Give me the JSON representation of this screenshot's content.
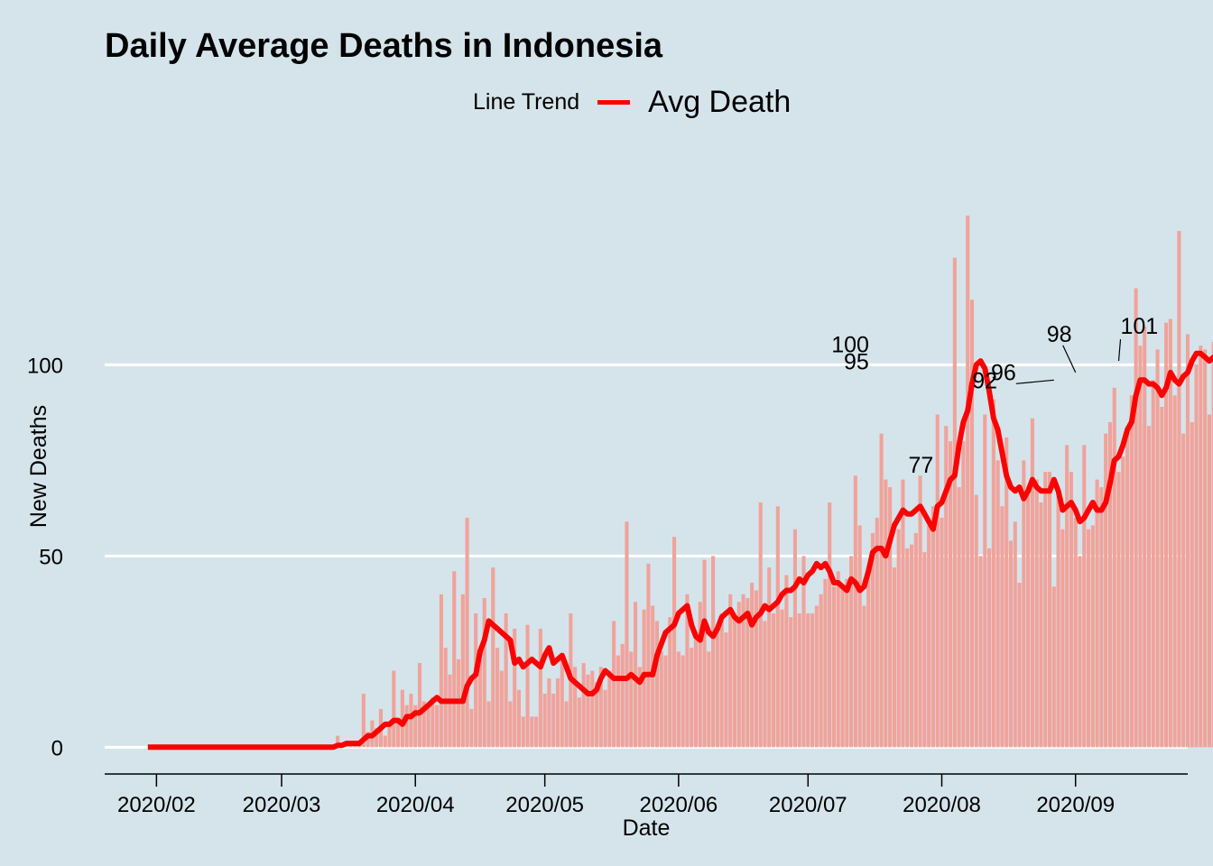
{
  "chart_data": {
    "type": "bar",
    "title": "Daily Average Deaths in Indonesia",
    "xlabel": "Date",
    "ylabel": "New Deaths",
    "x_range": [
      "2020-01-20",
      "2020-09-27"
    ],
    "ylim": [
      -7,
      160
    ],
    "y_ticks": [
      0,
      50,
      100
    ],
    "x_ticks": [
      {
        "date": "2020-02-01",
        "label": "2020/02"
      },
      {
        "date": "2020-03-01",
        "label": "2020/03"
      },
      {
        "date": "2020-04-01",
        "label": "2020/04"
      },
      {
        "date": "2020-05-01",
        "label": "2020/05"
      },
      {
        "date": "2020-06-01",
        "label": "2020/06"
      },
      {
        "date": "2020-07-01",
        "label": "2020/07"
      },
      {
        "date": "2020-08-01",
        "label": "2020/08"
      },
      {
        "date": "2020-09-01",
        "label": "2020/09"
      }
    ],
    "grid": "horizontal",
    "legend": {
      "title": "Line Trend",
      "position": "top",
      "series_label": "Avg Death"
    },
    "colors": {
      "bars": "#f0a39b",
      "line": "#ff0000",
      "background": "#d5e4eb",
      "grid": "#ffffff"
    },
    "start_date": "2020-01-30",
    "new_deaths": [
      0,
      0,
      0,
      0,
      0,
      0,
      0,
      0,
      0,
      0,
      0,
      0,
      0,
      0,
      0,
      0,
      0,
      0,
      0,
      0,
      0,
      0,
      0,
      0,
      0,
      0,
      0,
      0,
      0,
      0,
      0,
      0,
      0,
      0,
      0,
      0,
      0,
      0,
      0,
      0,
      0,
      0,
      0,
      0,
      3,
      1,
      1,
      1,
      1,
      1,
      14,
      4,
      7,
      5,
      10,
      3,
      6,
      20,
      7,
      15,
      11,
      14,
      11,
      22,
      12,
      11,
      13,
      11,
      40,
      26,
      19,
      46,
      23,
      40,
      60,
      10,
      35,
      25,
      39,
      12,
      47,
      26,
      20,
      35,
      12,
      31,
      15,
      8,
      32,
      8,
      8,
      31,
      14,
      18,
      14,
      18,
      23,
      12,
      35,
      21,
      13,
      22,
      19,
      20,
      17,
      21,
      15,
      20,
      33,
      24,
      27,
      59,
      25,
      38,
      21,
      36,
      48,
      37,
      33,
      25,
      24,
      34,
      55,
      25,
      24,
      40,
      26,
      30,
      38,
      49,
      25,
      50,
      32,
      35,
      30,
      40,
      34,
      38,
      40,
      39,
      43,
      41,
      64,
      33,
      47,
      35,
      63,
      36,
      45,
      34,
      57,
      35,
      50,
      35,
      35,
      37,
      40,
      44,
      64,
      42,
      46,
      42,
      44,
      50,
      71,
      58,
      37,
      47,
      56,
      60,
      82,
      70,
      68,
      47,
      57,
      70,
      52,
      53,
      56,
      71,
      51,
      58,
      63,
      87,
      60,
      84,
      80,
      128,
      68,
      80,
      139,
      117,
      66,
      50,
      87,
      52,
      91,
      75,
      63,
      81,
      54,
      59,
      43,
      75,
      66,
      86,
      70,
      64,
      72,
      72,
      42,
      66,
      57,
      79,
      72,
      60,
      50,
      79,
      57,
      58,
      70,
      68,
      82,
      85,
      94,
      72,
      76,
      83,
      92,
      120,
      105,
      110,
      84,
      96,
      104,
      89,
      111,
      112,
      92,
      135,
      82,
      108,
      85,
      100,
      105,
      104,
      87,
      106,
      120,
      88,
      101
    ],
    "avg_death": [
      0,
      0,
      0,
      0,
      0,
      0,
      0,
      0,
      0,
      0,
      0,
      0,
      0,
      0,
      0,
      0,
      0,
      0,
      0,
      0,
      0,
      0,
      0,
      0,
      0,
      0,
      0,
      0,
      0,
      0,
      0,
      0,
      0,
      0,
      0,
      0,
      0,
      0,
      0,
      0,
      0,
      0,
      0,
      0,
      0.5,
      0.5,
      1,
      1,
      1,
      1,
      2,
      3,
      3,
      4,
      5,
      6,
      6,
      7,
      7,
      6,
      8,
      8,
      9,
      9,
      10,
      11,
      12,
      13,
      12,
      12,
      12,
      12,
      12,
      12,
      16,
      18,
      19,
      25,
      28,
      33,
      32,
      31,
      30,
      29,
      28,
      22,
      23,
      21,
      22,
      23,
      22,
      21,
      24,
      26,
      22,
      23,
      24,
      21,
      18,
      17,
      16,
      15,
      14,
      14,
      15,
      18,
      20,
      19,
      18,
      18,
      18,
      18,
      19,
      18,
      17,
      19,
      19,
      19,
      24,
      27,
      30,
      31,
      32,
      35,
      36,
      37,
      32,
      29,
      28,
      33,
      30,
      29,
      31,
      34,
      35,
      36,
      34,
      33,
      34,
      35,
      32,
      34,
      35,
      37,
      36,
      37,
      38,
      40,
      41,
      41,
      42,
      44,
      43,
      45,
      46,
      48,
      47,
      48,
      46,
      43,
      43,
      42,
      41,
      44,
      43,
      41,
      42,
      46,
      51,
      52,
      52,
      50,
      54,
      58,
      60,
      62,
      61,
      61,
      62,
      63,
      61,
      59,
      57,
      63,
      64,
      67,
      70,
      71,
      79,
      85,
      88,
      95,
      100,
      101,
      99,
      93,
      86,
      83,
      77,
      71,
      68,
      67,
      68,
      65,
      67,
      70,
      68,
      67,
      67,
      67,
      70,
      67,
      62,
      63,
      64,
      62,
      59,
      60,
      62,
      64,
      62,
      62,
      64,
      69,
      75,
      76,
      79,
      83,
      85,
      92,
      96,
      96,
      95,
      95,
      94,
      92,
      94,
      98,
      96,
      95,
      97,
      98,
      101,
      103,
      103,
      102,
      101,
      102,
      101,
      101,
      101
    ],
    "annotations": [
      {
        "date": "2020-07-20",
        "value": 100,
        "label": "100"
      },
      {
        "date": "2020-07-21",
        "value": 95,
        "label": "95"
      },
      {
        "date": "2020-07-28",
        "value": 77,
        "label": "77"
      },
      {
        "date": "2020-08-21",
        "value": 92,
        "label": "92"
      },
      {
        "date": "2020-08-27",
        "value": 96,
        "label": "96"
      },
      {
        "date": "2020-09-01",
        "value": 98,
        "label": "98"
      },
      {
        "date": "2020-09-11",
        "value": 101,
        "label": "101"
      }
    ]
  }
}
